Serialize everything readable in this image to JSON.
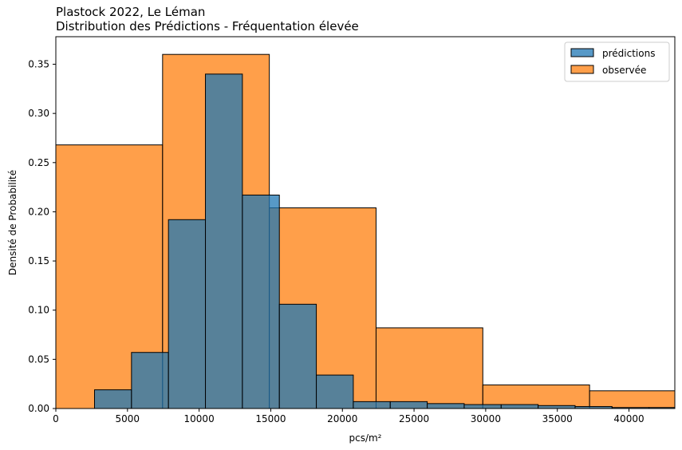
{
  "chart_data": {
    "type": "histogram",
    "title": "Plastock 2022, Le Léman",
    "subtitle": "Distribution des Prédictions - Fréquentation élevée",
    "xlabel": "pcs/m²",
    "ylabel": "Densité de Probabilité",
    "xlim": [
      0,
      43200
    ],
    "ylim": [
      0,
      0.378
    ],
    "x_ticks": [
      0,
      5000,
      10000,
      15000,
      20000,
      25000,
      30000,
      35000,
      40000
    ],
    "y_ticks": [
      0.0,
      0.05,
      0.1,
      0.15,
      0.2,
      0.25,
      0.3,
      0.35
    ],
    "grid": false,
    "legend_position": "top-right",
    "series": [
      {
        "name": "observée",
        "color": "#ff7f0e",
        "bins": [
          {
            "x0": 0,
            "x1": 7450,
            "value": 0.268
          },
          {
            "x0": 7450,
            "x1": 14900,
            "value": 0.36
          },
          {
            "x0": 14900,
            "x1": 22350,
            "value": 0.204
          },
          {
            "x0": 22350,
            "x1": 29800,
            "value": 0.082
          },
          {
            "x0": 29800,
            "x1": 37250,
            "value": 0.024
          },
          {
            "x0": 37250,
            "x1": 44700,
            "value": 0.018
          }
        ]
      },
      {
        "name": "prédictions",
        "color": "#1f77b4",
        "bins": [
          {
            "x0": 2700,
            "x1": 5280,
            "value": 0.019
          },
          {
            "x0": 5280,
            "x1": 7860,
            "value": 0.057
          },
          {
            "x0": 7860,
            "x1": 10440,
            "value": 0.192
          },
          {
            "x0": 10440,
            "x1": 13020,
            "value": 0.34
          },
          {
            "x0": 13020,
            "x1": 15600,
            "value": 0.217
          },
          {
            "x0": 15600,
            "x1": 18180,
            "value": 0.106
          },
          {
            "x0": 18180,
            "x1": 20760,
            "value": 0.034
          },
          {
            "x0": 20760,
            "x1": 23340,
            "value": 0.007
          },
          {
            "x0": 23340,
            "x1": 25920,
            "value": 0.007
          },
          {
            "x0": 25920,
            "x1": 28500,
            "value": 0.005
          },
          {
            "x0": 28500,
            "x1": 31080,
            "value": 0.004
          },
          {
            "x0": 31080,
            "x1": 33660,
            "value": 0.004
          },
          {
            "x0": 33660,
            "x1": 36240,
            "value": 0.003
          },
          {
            "x0": 36240,
            "x1": 38820,
            "value": 0.002
          },
          {
            "x0": 38820,
            "x1": 41400,
            "value": 0.001
          },
          {
            "x0": 41400,
            "x1": 43980,
            "value": 0.001
          }
        ]
      }
    ],
    "legend": [
      "prédictions",
      "observée"
    ]
  }
}
